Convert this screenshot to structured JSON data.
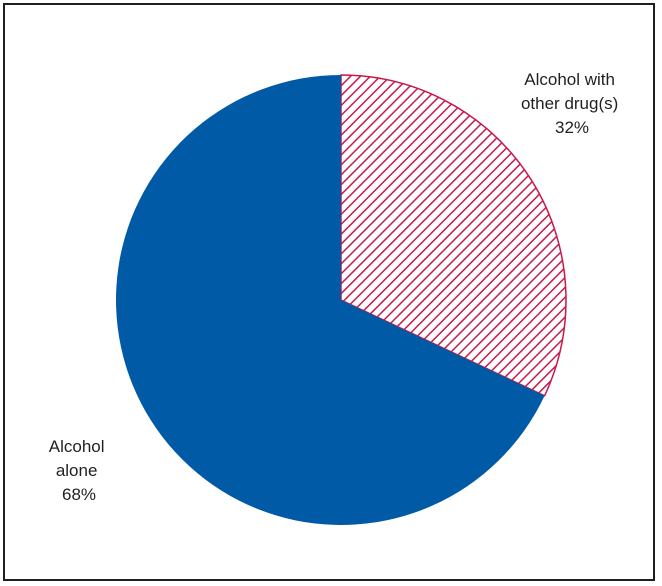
{
  "chart_data": {
    "type": "pie",
    "start_angle": "12 o'clock",
    "direction": "clockwise",
    "slices": [
      {
        "label_lines": [
          "Alcohol with",
          "other drug(s)"
        ],
        "value": 32,
        "value_label": "32%",
        "color": "#c8194b",
        "pattern": "diagonal-hatch"
      },
      {
        "label_lines": [
          "Alcohol",
          "alone"
        ],
        "value": 68,
        "value_label": "68%",
        "color": "#005aa5",
        "pattern": "solid"
      }
    ],
    "border_color": "#231f20"
  }
}
